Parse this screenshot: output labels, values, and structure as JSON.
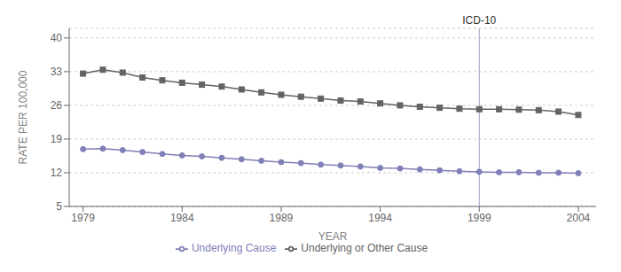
{
  "chart_data": {
    "type": "line",
    "x": [
      1979,
      1980,
      1981,
      1982,
      1983,
      1984,
      1985,
      1986,
      1987,
      1988,
      1989,
      1990,
      1991,
      1992,
      1993,
      1994,
      1995,
      1996,
      1997,
      1998,
      1999,
      2000,
      2001,
      2002,
      2003,
      2004
    ],
    "series": [
      {
        "name": "Underlying Cause",
        "color": "#8080b8",
        "marker": "circle",
        "values": [
          16.9,
          17.0,
          16.7,
          16.3,
          15.9,
          15.6,
          15.4,
          15.1,
          14.8,
          14.5,
          14.2,
          14.0,
          13.7,
          13.5,
          13.3,
          13.0,
          12.9,
          12.7,
          12.5,
          12.3,
          12.2,
          12.1,
          12.1,
          12.0,
          12.0,
          11.9
        ]
      },
      {
        "name": "Underlying or Other Cause",
        "color": "#636363",
        "marker": "square",
        "values": [
          32.6,
          33.4,
          32.8,
          31.8,
          31.2,
          30.7,
          30.3,
          29.9,
          29.3,
          28.7,
          28.2,
          27.8,
          27.4,
          27.0,
          26.8,
          26.4,
          26.0,
          25.7,
          25.5,
          25.3,
          25.2,
          25.2,
          25.1,
          25.0,
          24.7,
          24.0
        ]
      }
    ],
    "xlabel": "YEAR",
    "ylabel": "RATE PER 100,000",
    "xlim": [
      1978.3,
      2004.9
    ],
    "xticks": [
      1979,
      1984,
      1989,
      1994,
      1999,
      2004
    ],
    "ylim": [
      5,
      42
    ],
    "yticks": [
      5,
      12,
      19,
      26,
      33,
      40
    ],
    "grid": true,
    "legend": "bottom",
    "annotations": [
      {
        "x": 1999,
        "text": "ICD-10",
        "color": "#a0a0c8"
      }
    ]
  }
}
